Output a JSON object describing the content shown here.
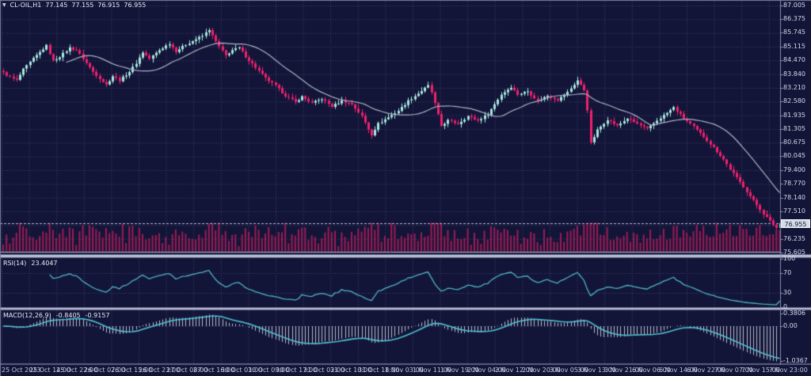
{
  "title": {
    "symbol": "CL-OIL,H1",
    "open": "77.145",
    "high": "77.155",
    "low": "76.915",
    "close": "76.955"
  },
  "indicators": {
    "rsi": {
      "label": "RSI(14)",
      "value": "23.4047"
    },
    "macd": {
      "label": "MACD(12,26,9)",
      "main": "-0.8405",
      "signal": "-0.9157"
    }
  },
  "axes": {
    "price_labels": [
      "87.005",
      "86.375",
      "85.745",
      "85.115",
      "84.470",
      "83.840",
      "83.210",
      "82.580",
      "81.935",
      "81.305",
      "80.675",
      "80.045",
      "79.400",
      "78.770",
      "78.140",
      "77.510",
      "76.235",
      "75.605"
    ],
    "rsi_labels": [
      "100",
      "70",
      "30",
      "0"
    ],
    "macd_labels": [
      "0.3806",
      "0.00",
      "-1.0367"
    ],
    "current_price": "76.955",
    "time_labels": [
      "25 Oct 2023",
      "25 Oct 14:00",
      "25 Oct 22:00",
      "26 Oct 07:00",
      "26 Oct 15:00",
      "26 Oct 23:00",
      "27 Oct 08:00",
      "27 Oct 16:00",
      "30 Oct 01:00",
      "30 Oct 09:00",
      "30 Oct 17:00",
      "31 Oct 02:00",
      "31 Oct 10:00",
      "31 Oct 18:00",
      "1 Nov 03:00",
      "1 Nov 11:00",
      "1 Nov 19:00",
      "2 Nov 04:00",
      "2 Nov 12:00",
      "2 Nov 20:00",
      "3 Nov 05:00",
      "3 Nov 13:00",
      "3 Nov 21:00",
      "6 Nov 06:00",
      "6 Nov 14:00",
      "6 Nov 22:00",
      "7 Nov 07:00",
      "7 Nov 15:00",
      "7 Nov 23:00"
    ]
  },
  "chart_data": {
    "type": "candlestick",
    "symbol": "CL-OIL",
    "timeframe": "H1",
    "ohlc_current": {
      "open": 77.145,
      "high": 77.155,
      "low": 76.915,
      "close": 76.955
    },
    "price_axis_range": {
      "min": 75.605,
      "max": 87.005
    },
    "candle_count": 235,
    "close_keypoints": [
      [
        0,
        83.9
      ],
      [
        2,
        83.7
      ],
      [
        4,
        83.55
      ],
      [
        6,
        84.05
      ],
      [
        9,
        84.55
      ],
      [
        12,
        85.0
      ],
      [
        13,
        85.15
      ],
      [
        15,
        84.45
      ],
      [
        17,
        84.65
      ],
      [
        20,
        85.05
      ],
      [
        22,
        84.95
      ],
      [
        24,
        84.55
      ],
      [
        27,
        83.95
      ],
      [
        31,
        83.35
      ],
      [
        33,
        83.75
      ],
      [
        35,
        83.55
      ],
      [
        38,
        83.95
      ],
      [
        40,
        84.35
      ],
      [
        42,
        84.85
      ],
      [
        44,
        84.55
      ],
      [
        47,
        84.95
      ],
      [
        50,
        85.25
      ],
      [
        52,
        84.9
      ],
      [
        55,
        85.2
      ],
      [
        58,
        85.45
      ],
      [
        60,
        85.6
      ],
      [
        62,
        85.9
      ],
      [
        63,
        85.6
      ],
      [
        65,
        85.1
      ],
      [
        67,
        84.7
      ],
      [
        69,
        84.95
      ],
      [
        71,
        85.05
      ],
      [
        73,
        84.65
      ],
      [
        76,
        84.15
      ],
      [
        79,
        83.65
      ],
      [
        82,
        83.3
      ],
      [
        85,
        82.85
      ],
      [
        88,
        82.55
      ],
      [
        90,
        82.8
      ],
      [
        93,
        82.5
      ],
      [
        96,
        82.7
      ],
      [
        99,
        82.35
      ],
      [
        102,
        82.6
      ],
      [
        105,
        82.45
      ],
      [
        108,
        81.9
      ],
      [
        110,
        81.3
      ],
      [
        111,
        81.05
      ],
      [
        113,
        81.55
      ],
      [
        116,
        81.85
      ],
      [
        119,
        82.15
      ],
      [
        122,
        82.6
      ],
      [
        125,
        82.95
      ],
      [
        128,
        83.3
      ],
      [
        129,
        83.0
      ],
      [
        131,
        81.95
      ],
      [
        132,
        81.45
      ],
      [
        134,
        81.7
      ],
      [
        137,
        81.55
      ],
      [
        140,
        81.9
      ],
      [
        143,
        81.7
      ],
      [
        146,
        82.0
      ],
      [
        148,
        82.45
      ],
      [
        150,
        82.9
      ],
      [
        153,
        83.25
      ],
      [
        155,
        82.9
      ],
      [
        158,
        83.05
      ],
      [
        161,
        82.6
      ],
      [
        164,
        82.85
      ],
      [
        167,
        82.65
      ],
      [
        170,
        83.0
      ],
      [
        173,
        83.55
      ],
      [
        175,
        83.1
      ],
      [
        176,
        82.2
      ],
      [
        177,
        80.65
      ],
      [
        179,
        81.25
      ],
      [
        182,
        81.75
      ],
      [
        185,
        81.45
      ],
      [
        188,
        81.8
      ],
      [
        191,
        81.55
      ],
      [
        194,
        81.3
      ],
      [
        197,
        81.7
      ],
      [
        200,
        82.05
      ],
      [
        202,
        82.3
      ],
      [
        205,
        81.8
      ],
      [
        208,
        81.4
      ],
      [
        211,
        80.95
      ],
      [
        214,
        80.45
      ],
      [
        217,
        79.9
      ],
      [
        219,
        79.45
      ],
      [
        221,
        79.05
      ],
      [
        223,
        78.65
      ],
      [
        225,
        78.2
      ],
      [
        227,
        77.8
      ],
      [
        229,
        77.4
      ],
      [
        231,
        77.05
      ],
      [
        233,
        76.75
      ],
      [
        234,
        76.955
      ]
    ],
    "indicators": [
      {
        "type": "sma",
        "period": 20,
        "pane": "price"
      },
      {
        "type": "rsi",
        "period": 14,
        "pane": "rsi",
        "last_value": 23.4047,
        "levels": [
          30,
          70
        ]
      },
      {
        "type": "macd",
        "fast": 12,
        "slow": 26,
        "signal": 9,
        "pane": "macd",
        "last_main": -0.8405,
        "last_signal": -0.9157,
        "axis_marks": [
          0.3806,
          0.0,
          -1.0367
        ]
      }
    ],
    "volume": {
      "shown": true,
      "style": "bars-at-pane-bottom"
    }
  },
  "colors": {
    "background": "#131538",
    "grid": "#3c4269",
    "bull": "#a9e8e2",
    "bear": "#f0206e",
    "volume": "#9e1b55",
    "ma": "#aab4c4",
    "rsi": "#4fb6c6",
    "macd_line": "#4fc3d5",
    "macd_hist": "#b9bdcd",
    "separator": "#b9bdd3",
    "separator_edge": "#595f80",
    "scale_line": "#8a90ae",
    "bid_line": "#b9bdd3",
    "border": "#787e9e"
  }
}
